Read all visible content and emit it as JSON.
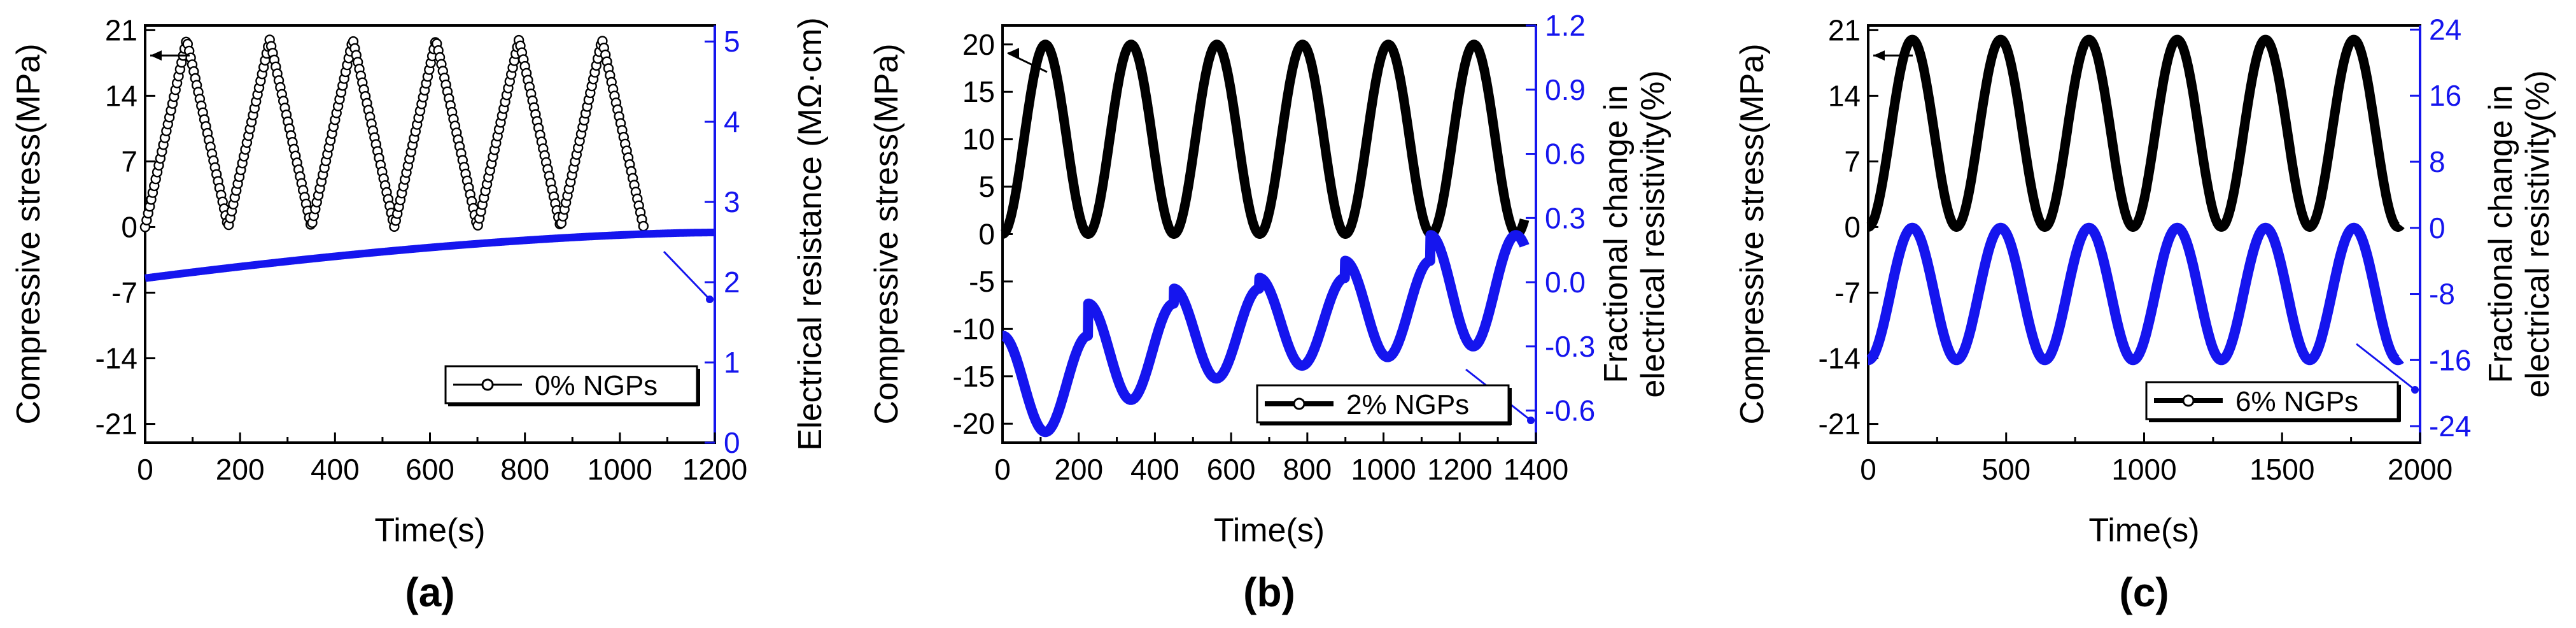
{
  "chart_data": [
    {
      "type": "line",
      "panel_label": "(a)",
      "xlabel": "Time(s)",
      "ylabel_left": "Compressive stress(MPa)",
      "ylabel_right": [
        "Electrical resistance (MΩ·cm)"
      ],
      "xlim": [
        0,
        1200
      ],
      "xticks": [
        0,
        200,
        400,
        600,
        800,
        1000,
        1200
      ],
      "ylim_left": [
        -23,
        21.5
      ],
      "yticks_left": [
        -21,
        -14,
        -7,
        0,
        7,
        14,
        21
      ],
      "ylim_right": [
        0,
        5.2
      ],
      "yticks_right": [
        0,
        1,
        2,
        3,
        4,
        5
      ],
      "legend": "0% NGPs",
      "legend_position": "lower-right",
      "series": [
        {
          "name": "Compressive stress",
          "axis": "left",
          "color": "#000000",
          "marker": "open-circle",
          "x_range": [
            0,
            1050
          ],
          "shape": "triangle-cycles",
          "cycles": 6,
          "period": 175,
          "min": 0,
          "max": 20
        },
        {
          "name": "Electrical resistance",
          "axis": "right",
          "color": "#1515ee",
          "x_range": [
            0,
            1200
          ],
          "shape": "monotonic-rise",
          "start": 2.05,
          "end": 2.62
        }
      ]
    },
    {
      "type": "line",
      "panel_label": "(b)",
      "xlabel": "Time(s)",
      "ylabel_left": "Compressive stress(MPa)",
      "ylabel_right": [
        "Fractional change in",
        "electrical resistivity(%)"
      ],
      "xlim": [
        0,
        1400
      ],
      "xticks": [
        0,
        200,
        400,
        600,
        800,
        1000,
        1200,
        1400
      ],
      "ylim_left": [
        -22,
        22
      ],
      "yticks_left": [
        -20,
        -15,
        -10,
        -5,
        0,
        5,
        10,
        15,
        20
      ],
      "ylim_right": [
        -0.75,
        1.2
      ],
      "yticks_right": [
        -0.6,
        -0.3,
        0.0,
        0.3,
        0.6,
        0.9,
        1.2
      ],
      "legend": "2% NGPs",
      "legend_position": "lower-right",
      "series": [
        {
          "name": "Compressive stress",
          "axis": "left",
          "color": "#000000",
          "x_range": [
            0,
            1370
          ],
          "shape": "sine-cycles",
          "cycles": 6,
          "period": 225,
          "min": 0,
          "max": 20
        },
        {
          "name": "Fractional change in electrical resistivity",
          "axis": "right",
          "color": "#1515ee",
          "x_range": [
            0,
            1370
          ],
          "shape": "sine-cycles-rising-baseline",
          "minima": [
            -0.7,
            -0.55,
            -0.45,
            -0.39,
            -0.35,
            -0.3
          ],
          "maxima": [
            -0.25,
            -0.1,
            -0.03,
            0.02,
            0.1,
            0.22
          ]
        }
      ]
    },
    {
      "type": "line",
      "panel_label": "(c)",
      "xlabel": "Time(s)",
      "ylabel_left": "Compressive stress(MPa)",
      "ylabel_right": [
        "Fractional change in",
        "electrical resistivity(%)"
      ],
      "xlim": [
        0,
        2000
      ],
      "xticks": [
        0,
        500,
        1000,
        1500,
        2000
      ],
      "ylim_left": [
        -23,
        21.5
      ],
      "yticks_left": [
        -21,
        -14,
        -7,
        0,
        7,
        14,
        21
      ],
      "ylim_right": [
        -26,
        24.5
      ],
      "yticks_right": [
        -24,
        -16,
        -8,
        0,
        8,
        16,
        24
      ],
      "legend": "6% NGPs",
      "legend_position": "lower-right",
      "series": [
        {
          "name": "Compressive stress",
          "axis": "left",
          "color": "#000000",
          "x_range": [
            0,
            1930
          ],
          "shape": "sine-cycles",
          "cycles": 6,
          "period": 320,
          "min": 0,
          "max": 20
        },
        {
          "name": "Fractional change in electrical resistivity",
          "axis": "right",
          "color": "#1515ee",
          "x_range": [
            0,
            1930
          ],
          "shape": "sine-cycles",
          "cycles": 6,
          "period": 320,
          "min": -16,
          "max": 0
        }
      ]
    }
  ]
}
